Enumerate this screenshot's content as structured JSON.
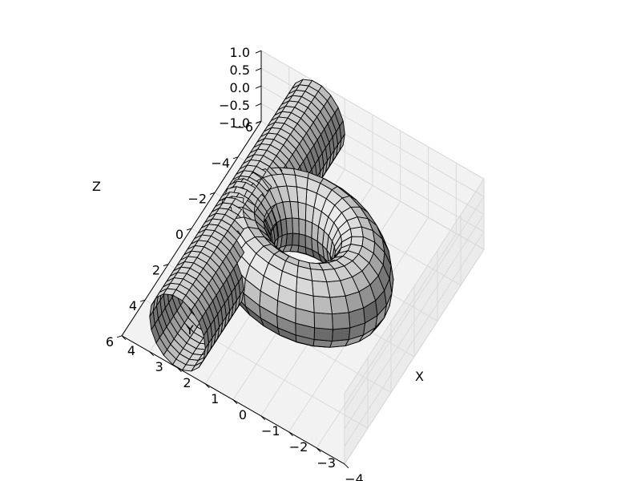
{
  "chart_data": {
    "type": "3d-surface",
    "title": "",
    "projection": {
      "elev": 54,
      "azim": 61
    },
    "pane_color": "#f2f2f2",
    "pane_edge_color": "#e2e2e2",
    "surface_color": "#aaaaaa",
    "edge_color": "#000000",
    "axes": {
      "x": {
        "label": "X",
        "lim": [
          -4,
          4
        ],
        "ticks": [
          -4,
          -3,
          -2,
          -1,
          0,
          1,
          2,
          3,
          4
        ],
        "tick_labels": [
          "−4",
          "−3",
          "−2",
          "−1",
          "0",
          "1",
          "2",
          "3",
          "4"
        ]
      },
      "y": {
        "label": "Y",
        "lim": [
          -6,
          6
        ],
        "ticks": [
          -6,
          -4,
          -2,
          0,
          2,
          4,
          6
        ],
        "tick_labels": [
          "−6",
          "−4",
          "−2",
          "0",
          "2",
          "4",
          "6"
        ]
      },
      "z": {
        "label": "Z",
        "lim": [
          -1,
          1
        ],
        "ticks": [
          -1,
          -0.5,
          0,
          0.5,
          1
        ],
        "tick_labels": [
          "−1.0",
          "−0.5",
          "0.0",
          "0.5",
          "1.0"
        ]
      }
    },
    "surfaces": [
      {
        "name": "",
        "shape": "torus",
        "major_radius": 2,
        "minor_radius": 1,
        "center": [
          0,
          0,
          0
        ],
        "u_steps": 30,
        "v_steps": 16
      },
      {
        "name": "",
        "shape": "cylinder",
        "axis": "y",
        "radius": 1,
        "center": [
          2,
          0,
          0
        ],
        "y_range": [
          -6,
          6
        ],
        "around_steps": 18,
        "length_steps": 40
      }
    ]
  }
}
